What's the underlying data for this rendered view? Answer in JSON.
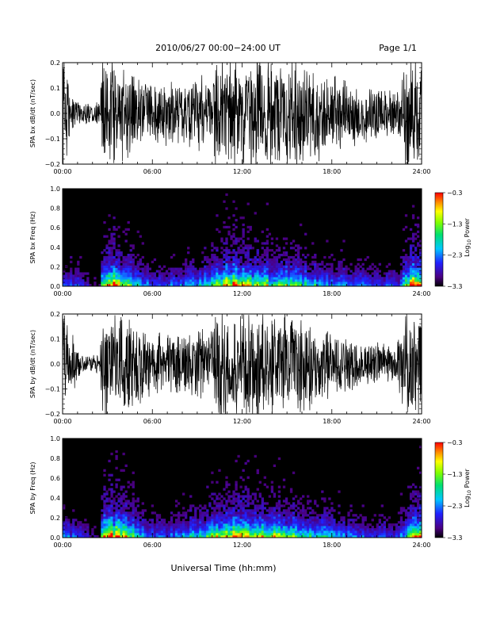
{
  "header": {
    "title": "2010/06/27  00:00−24:00 UT",
    "page": "Page 1/1"
  },
  "footer": {
    "xlabel": "Universal Time (hh:mm)"
  },
  "colorbar": {
    "ticks": [
      "−0.3",
      "−1.3",
      "−2.3",
      "−3.3"
    ],
    "label": "Log",
    "label_sub": "10",
    "label_tail": " Power"
  },
  "chart_data": [
    {
      "type": "line",
      "ylabel": "SPA bx dB/dt (nT/sec)",
      "xlim": [
        0,
        24
      ],
      "ylim": [
        -0.2,
        0.2
      ],
      "x_ticks": [
        "00:00",
        "06:00",
        "12:00",
        "18:00",
        "24:00"
      ],
      "y_ticks": [
        "−0.2",
        "−0.1",
        "0.0",
        "0.1",
        "0.2"
      ],
      "envelope": {
        "hours": [
          0,
          0.6,
          1.2,
          2.5,
          2.6,
          3.5,
          4.5,
          6,
          8,
          10,
          10.2,
          12,
          14,
          16,
          17,
          18,
          20,
          22.3,
          22.9,
          23.2,
          24
        ],
        "amplitude": [
          0.25,
          0.1,
          0.05,
          0.05,
          0.25,
          0.25,
          0.2,
          0.13,
          0.14,
          0.18,
          0.25,
          0.25,
          0.25,
          0.24,
          0.2,
          0.17,
          0.13,
          0.1,
          0.25,
          0.25,
          0.25
        ]
      }
    },
    {
      "type": "heatmap",
      "ylabel": "SPA bx Freq (Hz)",
      "xlim": [
        0,
        24
      ],
      "ylim": [
        0,
        1
      ],
      "x_ticks": [
        "00:00",
        "06:00",
        "12:00",
        "18:00",
        "24:00"
      ],
      "y_ticks": [
        "0.0",
        "0.2",
        "0.4",
        "0.6",
        "0.8",
        "1.0"
      ],
      "color_range": [
        -3.3,
        -0.3
      ],
      "activity": {
        "hours": [
          0,
          1,
          2.5,
          2.6,
          3.3,
          4,
          5,
          6,
          8,
          10,
          11,
          12,
          13,
          15,
          17,
          19,
          21,
          22.5,
          23.4,
          24
        ],
        "level": [
          0.3,
          0.25,
          0.05,
          0.7,
          0.9,
          0.75,
          0.45,
          0.25,
          0.3,
          0.5,
          0.85,
          0.7,
          0.65,
          0.55,
          0.4,
          0.3,
          0.25,
          0.2,
          0.95,
          0.95
        ]
      }
    },
    {
      "type": "line",
      "ylabel": "SPA by dB/dt (nT/sec)",
      "xlim": [
        0,
        24
      ],
      "ylim": [
        -0.2,
        0.2
      ],
      "x_ticks": [
        "00:00",
        "06:00",
        "12:00",
        "18:00",
        "24:00"
      ],
      "y_ticks": [
        "−0.2",
        "−0.1",
        "0.0",
        "0.1",
        "0.2"
      ],
      "envelope": {
        "hours": [
          0,
          0.7,
          1.3,
          2.5,
          2.6,
          3.5,
          4.5,
          6,
          8,
          10,
          10.2,
          12,
          14,
          16,
          17,
          18,
          20,
          22.3,
          22.9,
          23.2,
          24
        ],
        "amplitude": [
          0.25,
          0.12,
          0.04,
          0.04,
          0.25,
          0.25,
          0.22,
          0.14,
          0.14,
          0.16,
          0.25,
          0.25,
          0.25,
          0.22,
          0.18,
          0.13,
          0.1,
          0.08,
          0.25,
          0.25,
          0.25
        ]
      }
    },
    {
      "type": "heatmap",
      "ylabel": "SPA by Freq (Hz)",
      "xlim": [
        0,
        24
      ],
      "ylim": [
        0,
        1
      ],
      "x_ticks": [
        "00:00",
        "06:00",
        "12:00",
        "18:00",
        "24:00"
      ],
      "y_ticks": [
        "0.0",
        "0.2",
        "0.4",
        "0.6",
        "0.8",
        "1.0"
      ],
      "color_range": [
        -3.3,
        -0.3
      ],
      "activity": {
        "hours": [
          0,
          1,
          2.5,
          2.6,
          3.3,
          4,
          5,
          6,
          8,
          10,
          11,
          12,
          13,
          15,
          17,
          19,
          21,
          22.5,
          23.4,
          24
        ],
        "level": [
          0.3,
          0.25,
          0.05,
          0.7,
          0.9,
          0.75,
          0.45,
          0.25,
          0.3,
          0.55,
          0.9,
          0.75,
          0.7,
          0.6,
          0.45,
          0.3,
          0.25,
          0.2,
          0.95,
          0.95
        ]
      }
    }
  ]
}
